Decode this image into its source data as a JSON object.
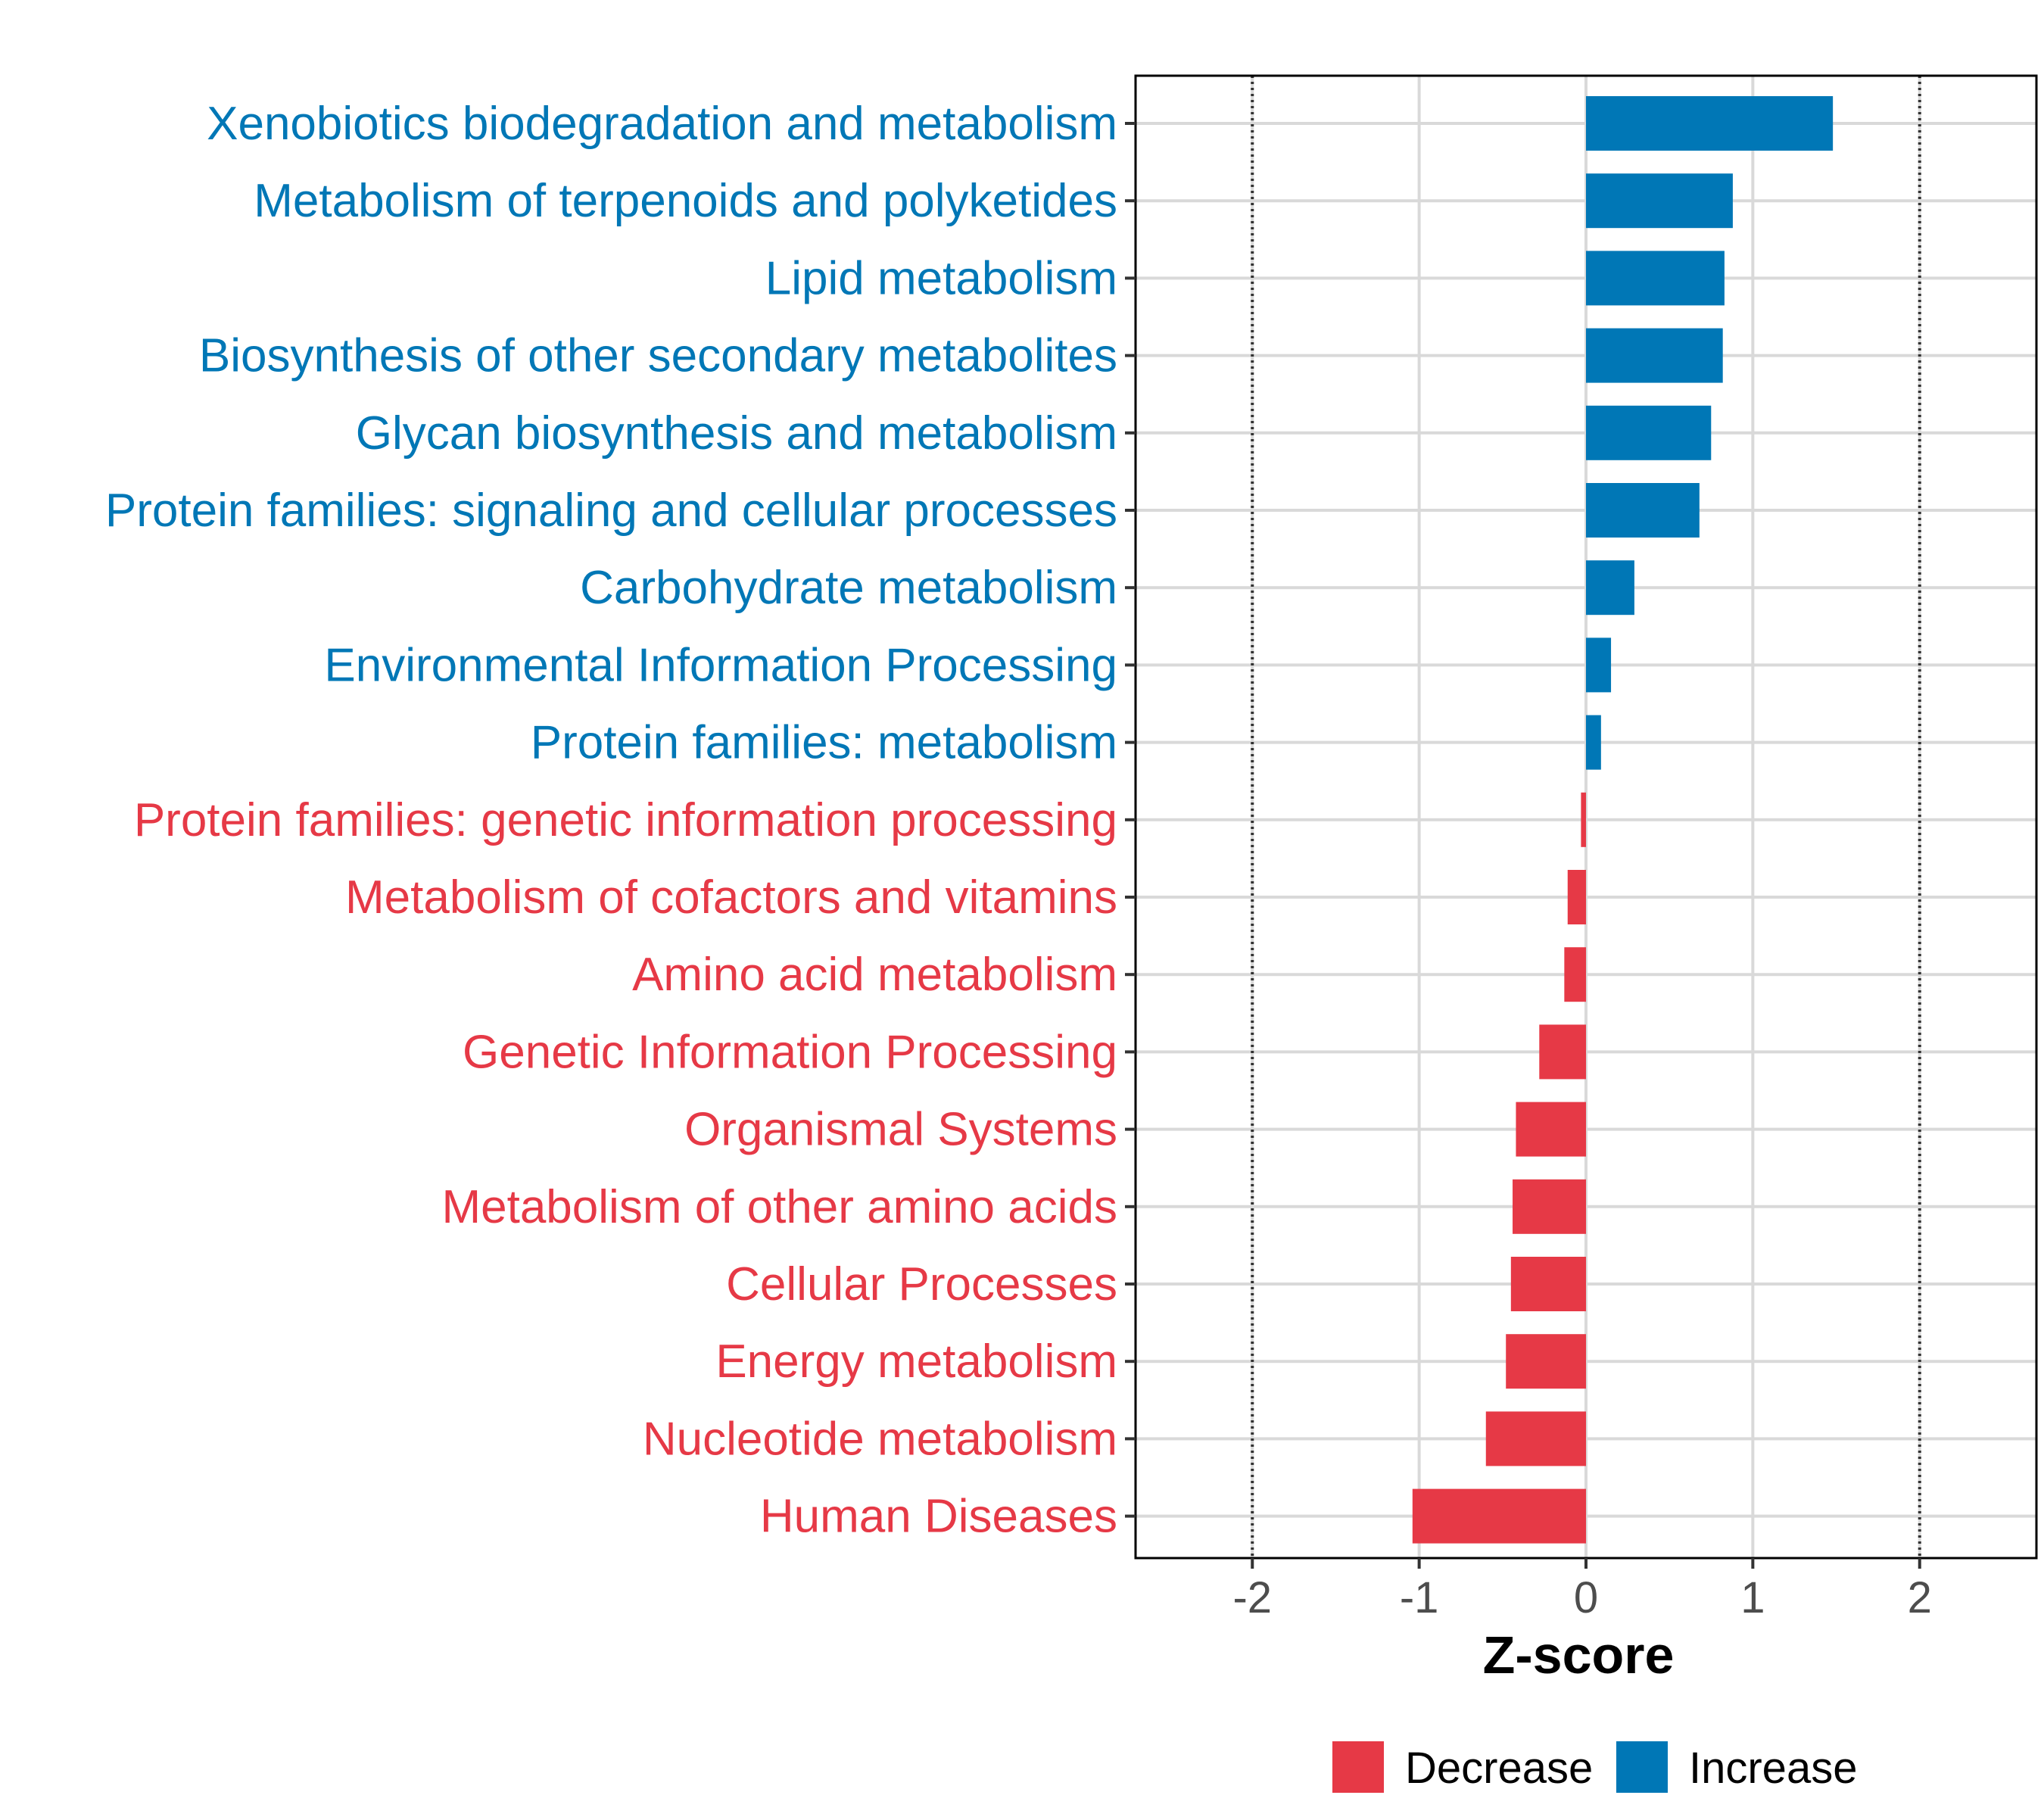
{
  "chart_data": {
    "type": "bar",
    "orientation": "horizontal",
    "title": "",
    "xlabel": "Z-score",
    "ylabel": "",
    "xlim": [
      -2.7,
      2.7
    ],
    "xticks": [
      -2,
      -1,
      0,
      1,
      2
    ],
    "xtick_labels": [
      "-2",
      "-1",
      "0",
      "1",
      "2"
    ],
    "reference_lines": [
      -2,
      2
    ],
    "grid": true,
    "legend_position": "bottom",
    "categories": [
      "Xenobiotics biodegradation and metabolism",
      "Metabolism of terpenoids and polyketides",
      "Lipid metabolism",
      "Biosynthesis of other secondary metabolites",
      "Glycan biosynthesis and metabolism",
      "Protein families: signaling and cellular processes",
      "Carbohydrate metabolism",
      "Environmental Information Processing",
      "Protein families: metabolism",
      "Protein families: genetic information processing",
      "Metabolism of cofactors and vitamins",
      "Amino acid metabolism",
      "Genetic Information Processing",
      "Organismal Systems",
      "Metabolism of other amino acids",
      "Cellular Processes",
      "Energy metabolism",
      "Nucleotide metabolism",
      "Human Diseases"
    ],
    "values": [
      1.48,
      0.88,
      0.83,
      0.82,
      0.75,
      0.68,
      0.29,
      0.15,
      0.09,
      -0.03,
      -0.11,
      -0.13,
      -0.28,
      -0.42,
      -0.44,
      -0.45,
      -0.48,
      -0.6,
      -1.04
    ],
    "groups": [
      "Increase",
      "Increase",
      "Increase",
      "Increase",
      "Increase",
      "Increase",
      "Increase",
      "Increase",
      "Increase",
      "Decrease",
      "Decrease",
      "Decrease",
      "Decrease",
      "Decrease",
      "Decrease",
      "Decrease",
      "Decrease",
      "Decrease",
      "Decrease"
    ],
    "legend": [
      {
        "name": "Decrease",
        "color": "#e63946"
      },
      {
        "name": "Increase",
        "color": "#0077b6"
      }
    ]
  },
  "colors": {
    "increase": "#0077b6",
    "decrease": "#e63946",
    "grid": "#d9d9d9",
    "panel_border": "#000000"
  }
}
